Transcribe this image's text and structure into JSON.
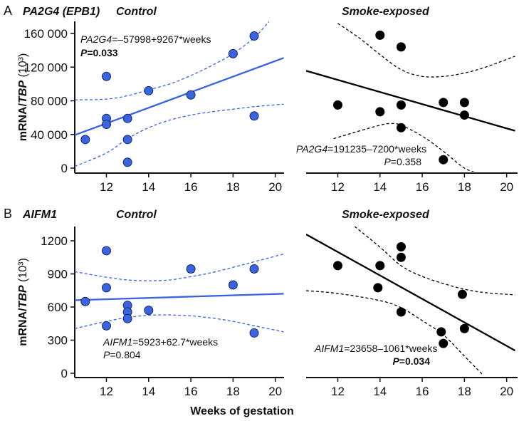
{
  "chart_data": [
    {
      "type": "scatter",
      "panel_letter": "A",
      "gene": "PA2G4 (EPB1)",
      "title": "Control",
      "ylabel_main": "mRNA/",
      "ylabel_italic": "TBP",
      "ylabel_unit": " (10³)",
      "xlim": [
        10.5,
        20.4
      ],
      "ylim": [
        -7000,
        174000
      ],
      "xticks": [
        12,
        14,
        16,
        18,
        20
      ],
      "yticks": [
        0,
        40000,
        80000,
        120000,
        160000
      ],
      "ytick_labels": [
        "0",
        "40 000",
        "80 000",
        "120 000",
        "160 000"
      ],
      "color": "#3b63e0",
      "points": [
        [
          11,
          34000
        ],
        [
          12,
          109000
        ],
        [
          12,
          59000
        ],
        [
          12,
          52000
        ],
        [
          13,
          59000
        ],
        [
          13,
          34000
        ],
        [
          13,
          7000
        ],
        [
          14,
          92000
        ],
        [
          16,
          87000
        ],
        [
          18,
          136000
        ],
        [
          19,
          157000
        ],
        [
          19,
          62000
        ]
      ],
      "fit": [
        [
          10.5,
          39300
        ],
        [
          20.4,
          131000
        ]
      ],
      "ci_upper": [
        [
          10.5,
          81000
        ],
        [
          12,
          82000
        ],
        [
          13,
          86000
        ],
        [
          14,
          93000
        ],
        [
          15,
          100000
        ],
        [
          16,
          110000
        ],
        [
          17,
          122000
        ],
        [
          18,
          136000
        ],
        [
          19,
          155000
        ],
        [
          19.7,
          174000
        ]
      ],
      "ci_lower": [
        [
          10.5,
          2000
        ],
        [
          12,
          18000
        ],
        [
          13,
          35000
        ],
        [
          14,
          48000
        ],
        [
          15,
          57000
        ],
        [
          16,
          63000
        ],
        [
          17,
          67000
        ],
        [
          18,
          70000
        ],
        [
          19,
          73000
        ],
        [
          20.4,
          76000
        ]
      ],
      "equation_gene": "PA2G4",
      "equation_rest": "=–57998+9267*weeks",
      "p_label": "P",
      "p_value": "=0.033",
      "p_bold": true
    },
    {
      "type": "scatter",
      "title": "Smoke-exposed",
      "xlim": [
        10.5,
        20.4
      ],
      "ylim": [
        -7000,
        174000
      ],
      "xticks": [
        12,
        14,
        16,
        18,
        20
      ],
      "color": "#000000",
      "points": [
        [
          14,
          158000
        ],
        [
          15,
          144000
        ],
        [
          12,
          75000
        ],
        [
          14,
          67000
        ],
        [
          15,
          75000
        ],
        [
          15,
          48000
        ],
        [
          17,
          78000
        ],
        [
          18,
          78000
        ],
        [
          18,
          63000
        ],
        [
          17,
          10000
        ]
      ],
      "fit": [
        [
          10.5,
          115600
        ],
        [
          20.4,
          44400
        ]
      ],
      "ci_upper": [
        [
          12,
          172000
        ],
        [
          13,
          155000
        ],
        [
          14,
          135000
        ],
        [
          15,
          117000
        ],
        [
          16,
          109000
        ],
        [
          17,
          109000
        ],
        [
          18,
          113000
        ],
        [
          19,
          120000
        ],
        [
          20.4,
          133000
        ]
      ],
      "ci_lower": [
        [
          11.8,
          35000
        ],
        [
          13,
          44000
        ],
        [
          14,
          51000
        ],
        [
          14.5,
          53000
        ],
        [
          15,
          51000
        ],
        [
          16,
          38000
        ],
        [
          17,
          20000
        ],
        [
          18,
          0
        ],
        [
          18.7,
          -6000
        ]
      ],
      "equation_gene": "PA2G4",
      "equation_rest": "=191235–7200*weeks",
      "p_label": "P",
      "p_value": "=0.358",
      "p_bold": false
    },
    {
      "type": "scatter",
      "panel_letter": "B",
      "gene": "AIFM1",
      "title": "Control",
      "ylabel_main": "mRNA/",
      "ylabel_italic": "TBP",
      "ylabel_unit": " (10³)",
      "xlim": [
        10.5,
        20.4
      ],
      "ylim": [
        -40,
        1330
      ],
      "xticks": [
        12,
        14,
        16,
        18,
        20
      ],
      "yticks": [
        0,
        300,
        600,
        900,
        1200
      ],
      "ytick_labels": [
        "0",
        "300",
        "600",
        "900",
        "1200"
      ],
      "color": "#3b63e0",
      "points": [
        [
          11,
          650
        ],
        [
          12,
          1110
        ],
        [
          12,
          775
        ],
        [
          12,
          430
        ],
        [
          13,
          615
        ],
        [
          13,
          555
        ],
        [
          13,
          495
        ],
        [
          14,
          570
        ],
        [
          16,
          945
        ],
        [
          18,
          800
        ],
        [
          19,
          945
        ],
        [
          19,
          365
        ]
      ],
      "fit": [
        [
          10.5,
          662
        ],
        [
          20.4,
          720
        ]
      ],
      "ci_upper": [
        [
          10.5,
          920
        ],
        [
          12,
          870
        ],
        [
          13,
          845
        ],
        [
          14,
          838
        ],
        [
          15,
          845
        ],
        [
          16,
          875
        ],
        [
          17,
          912
        ],
        [
          18,
          960
        ],
        [
          19,
          1010
        ],
        [
          20.4,
          1080
        ]
      ],
      "ci_lower": [
        [
          10.5,
          405
        ],
        [
          12,
          470
        ],
        [
          13,
          505
        ],
        [
          14,
          525
        ],
        [
          15,
          528
        ],
        [
          16,
          520
        ],
        [
          17,
          500
        ],
        [
          18,
          470
        ],
        [
          19,
          430
        ],
        [
          20.4,
          375
        ]
      ],
      "equation_gene": "AIFM1",
      "equation_rest": "=5923+62.7*weeks",
      "p_label": "P",
      "p_value": "=0.804",
      "p_bold": false
    },
    {
      "type": "scatter",
      "title": "Smoke-exposed",
      "xlim": [
        10.5,
        20.4
      ],
      "ylim": [
        -40,
        1330
      ],
      "xticks": [
        12,
        14,
        16,
        18,
        20
      ],
      "color": "#000000",
      "points": [
        [
          12,
          975
        ],
        [
          14,
          975
        ],
        [
          13.9,
          775
        ],
        [
          15,
          1145
        ],
        [
          15,
          1050
        ],
        [
          15,
          555
        ],
        [
          16.9,
          375
        ],
        [
          17,
          270
        ],
        [
          18,
          405
        ],
        [
          17.9,
          715
        ]
      ],
      "fit": [
        [
          10.5,
          1258
        ],
        [
          20.4,
          206
        ]
      ],
      "ci_upper": [
        [
          12.8,
          1330
        ],
        [
          14,
          1142
        ],
        [
          15,
          974
        ],
        [
          16,
          877
        ],
        [
          17,
          813
        ],
        [
          18,
          761
        ],
        [
          19,
          730
        ],
        [
          20.4,
          710
        ]
      ],
      "ci_lower": [
        [
          10.5,
          748
        ],
        [
          12,
          723
        ],
        [
          14,
          658
        ],
        [
          15,
          594
        ],
        [
          16,
          477
        ],
        [
          17,
          348
        ],
        [
          18,
          155
        ],
        [
          18.9,
          -20
        ]
      ],
      "equation_gene": "AIFM1",
      "equation_rest": "=23658–1061*weeks",
      "p_label": "P",
      "p_value": "=0.034",
      "p_bold": true
    }
  ],
  "xlabel": "Weeks of gestation"
}
